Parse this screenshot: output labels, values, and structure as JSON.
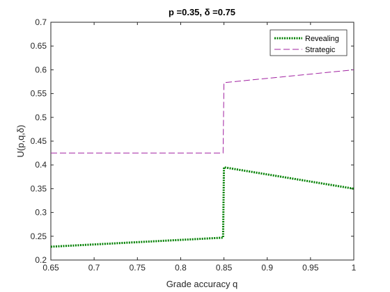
{
  "chart_data": {
    "type": "line",
    "title": "p =0.35, δ =0.75",
    "xlabel": "Grade accuracy q",
    "ylabel": "U(p,q,δ)",
    "xlim": [
      0.65,
      1
    ],
    "ylim": [
      0.2,
      0.7
    ],
    "xticks": [
      0.65,
      0.7,
      0.75,
      0.8,
      0.85,
      0.9,
      0.95,
      1
    ],
    "xtick_labels": [
      "0.65",
      "0.7",
      "0.75",
      "0.8",
      "0.85",
      "0.9",
      "0.95",
      "1"
    ],
    "yticks": [
      0.2,
      0.25,
      0.3,
      0.35,
      0.4,
      0.45,
      0.5,
      0.55,
      0.6,
      0.65,
      0.7
    ],
    "ytick_labels": [
      "0.2",
      "0.25",
      "0.3",
      "0.35",
      "0.4",
      "0.45",
      "0.5",
      "0.55",
      "0.6",
      "0.65",
      "0.7"
    ],
    "grid": false,
    "legend_position": "top-right",
    "series": [
      {
        "name": "Revealing",
        "color": "#008000",
        "style": "dotted",
        "x": [
          0.65,
          0.849,
          0.849,
          0.85,
          1.0
        ],
        "y": [
          0.228,
          0.247,
          0.247,
          0.395,
          0.35
        ]
      },
      {
        "name": "Strategic",
        "color": "#A020A0",
        "style": "dashed",
        "x": [
          0.65,
          0.849,
          0.849,
          0.85,
          1.0
        ],
        "y": [
          0.425,
          0.425,
          0.425,
          0.573,
          0.6
        ]
      }
    ]
  }
}
